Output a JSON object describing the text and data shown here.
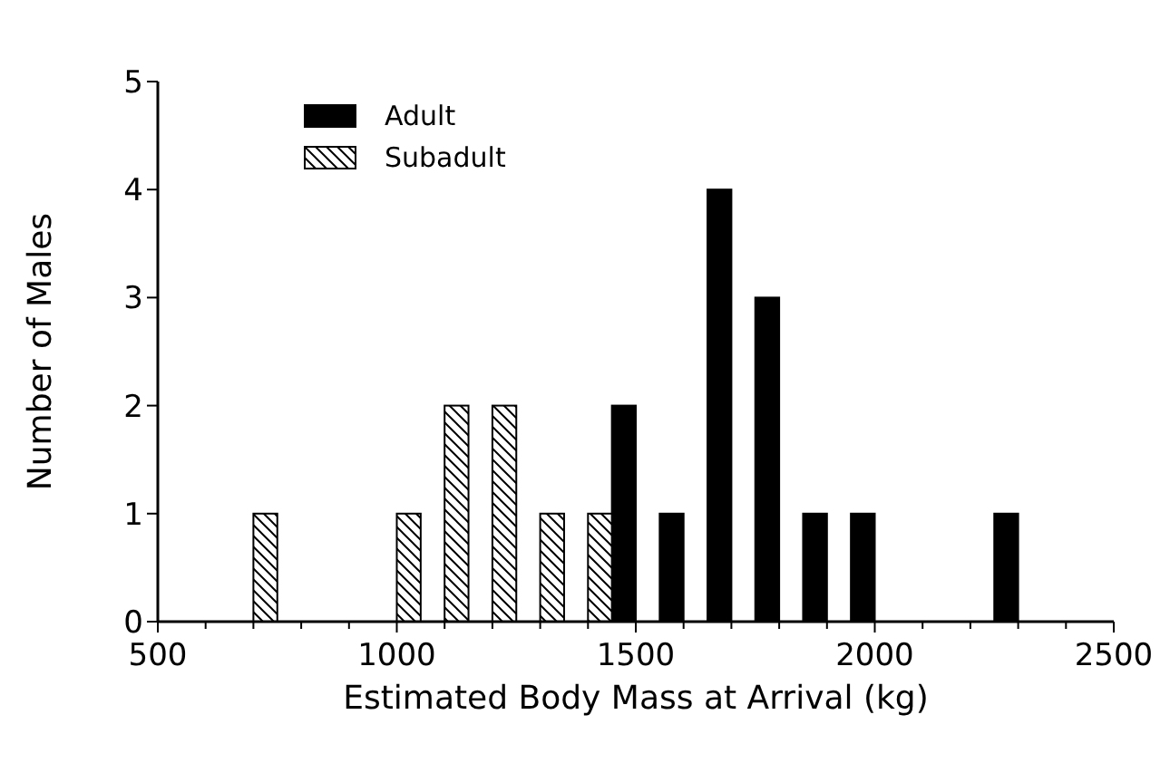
{
  "chart_data": {
    "type": "bar",
    "xlabel": "Estimated Body Mass at Arrival (kg)",
    "ylabel": "Number of Males",
    "xlim": [
      500,
      2500
    ],
    "ylim": [
      0,
      5
    ],
    "xticks": [
      500,
      {
        "value": 600,
        "label": null
      },
      {
        "value": 700,
        "label": null
      },
      {
        "value": 800,
        "label": null
      },
      {
        "value": 900,
        "label": null
      },
      1000,
      {
        "value": 1100,
        "label": null
      },
      {
        "value": 1200,
        "label": null
      },
      {
        "value": 1300,
        "label": null
      },
      {
        "value": 1400,
        "label": null
      },
      1500,
      {
        "value": 1600,
        "label": null
      },
      {
        "value": 1700,
        "label": null
      },
      {
        "value": 1800,
        "label": null
      },
      {
        "value": 1900,
        "label": null
      },
      2000,
      {
        "value": 2100,
        "label": null
      },
      {
        "value": 2200,
        "label": null
      },
      {
        "value": 2300,
        "label": null
      },
      {
        "value": 2400,
        "label": null
      },
      2500
    ],
    "yticks": [
      0,
      1,
      2,
      3,
      4,
      5
    ],
    "grid": false,
    "legend": "top left",
    "series": [
      {
        "name": "Adult",
        "color": "#000000",
        "x": [
          1475,
          1575,
          1675,
          1775,
          1875,
          1975,
          2275
        ],
        "values": [
          2,
          1,
          4,
          3,
          1,
          1,
          1
        ]
      },
      {
        "name": "Subadult",
        "color": "#000000",
        "x": [
          725,
          1025,
          1125,
          1225,
          1325,
          1425
        ],
        "values": [
          1,
          1,
          2,
          2,
          1,
          1
        ]
      }
    ]
  }
}
